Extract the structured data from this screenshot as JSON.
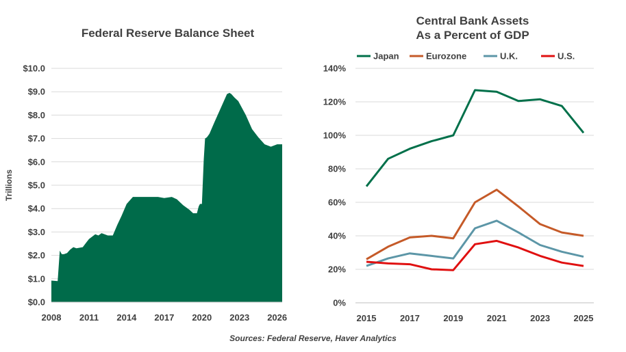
{
  "chart_data": [
    {
      "type": "area",
      "title": "Federal Reserve Balance Sheet",
      "ylabel": "Trillions",
      "xlabel": "",
      "ylim": [
        0,
        10
      ],
      "xlim": [
        2008,
        2026.4
      ],
      "y_ticks": [
        "$0.0",
        "$1.0",
        "$2.0",
        "$3.0",
        "$4.0",
        "$5.0",
        "$6.0",
        "$7.0",
        "$8.0",
        "$9.0",
        "$10.0"
      ],
      "x_ticks": [
        "2008",
        "2011",
        "2014",
        "2017",
        "2020",
        "2023",
        "2026"
      ],
      "grid": true,
      "color": "#006B4A",
      "series": [
        {
          "x": [
            2008.0,
            2008.5,
            2008.67,
            2008.83,
            2009.0,
            2009.25,
            2009.5,
            2009.75,
            2010.0,
            2010.5,
            2011.0,
            2011.5,
            2011.75,
            2012.0,
            2012.5,
            2012.9,
            2013.25,
            2013.6,
            2014.0,
            2014.5,
            2014.9,
            2015.5,
            2016.0,
            2016.5,
            2017.0,
            2017.6,
            2018.0,
            2018.5,
            2019.0,
            2019.3,
            2019.6,
            2019.75,
            2019.85,
            2020.0,
            2020.15,
            2020.25,
            2020.4,
            2020.6,
            2021.0,
            2021.5,
            2022.0,
            2022.2,
            2022.35,
            2022.6,
            2022.9,
            2023.0,
            2023.2,
            2023.5,
            2024.0,
            2024.5,
            2025.0,
            2025.5,
            2026.0,
            2026.4
          ],
          "y": [
            0.92,
            0.9,
            2.2,
            2.05,
            2.05,
            2.1,
            2.25,
            2.35,
            2.3,
            2.35,
            2.7,
            2.9,
            2.85,
            2.95,
            2.85,
            2.85,
            3.3,
            3.7,
            4.2,
            4.5,
            4.5,
            4.5,
            4.5,
            4.5,
            4.45,
            4.5,
            4.4,
            4.15,
            3.95,
            3.8,
            3.8,
            4.1,
            4.2,
            4.2,
            6.1,
            7.0,
            7.05,
            7.2,
            7.7,
            8.3,
            8.9,
            8.95,
            8.9,
            8.75,
            8.6,
            8.5,
            8.3,
            8.0,
            7.4,
            7.05,
            6.75,
            6.65,
            6.75,
            6.75
          ]
        }
      ]
    },
    {
      "type": "line",
      "title": "Central Bank Assets As a Percent of GDP",
      "title_lines": [
        "Central Bank Assets",
        "As a Percent of GDP"
      ],
      "xlabel": "",
      "ylabel": "",
      "ylim": [
        0,
        140
      ],
      "y_ticks": [
        "0%",
        "20%",
        "40%",
        "60%",
        "80%",
        "100%",
        "120%",
        "140%"
      ],
      "x_ticks": [
        "2015",
        "2017",
        "2019",
        "2021",
        "2023",
        "2025"
      ],
      "grid": true,
      "legend_position": "top",
      "x": [
        2015,
        2016,
        2017,
        2018,
        2019,
        2020,
        2021,
        2022,
        2023,
        2024,
        2025
      ],
      "series": [
        {
          "name": "Japan",
          "color": "#00704A",
          "values": [
            69.5,
            86,
            92,
            96.5,
            100,
            127,
            126,
            120.5,
            121.5,
            117.5,
            101.5
          ]
        },
        {
          "name": "Eurozone",
          "color": "#C55A28",
          "values": [
            26,
            33.5,
            39,
            40,
            38.5,
            60,
            67.5,
            57.5,
            47,
            42,
            40
          ]
        },
        {
          "name": "U.K.",
          "color": "#5C96A7",
          "values": [
            22,
            26.5,
            29.5,
            28,
            26.5,
            44.5,
            49,
            42,
            34.5,
            30.5,
            27.5
          ]
        },
        {
          "name": "U.S.",
          "color": "#E01010",
          "values": [
            24.5,
            23.5,
            23,
            20,
            19.5,
            35,
            37,
            33,
            28,
            24,
            22
          ]
        }
      ]
    }
  ],
  "source_note": "Sources: Federal Reserve, Haver Analytics"
}
